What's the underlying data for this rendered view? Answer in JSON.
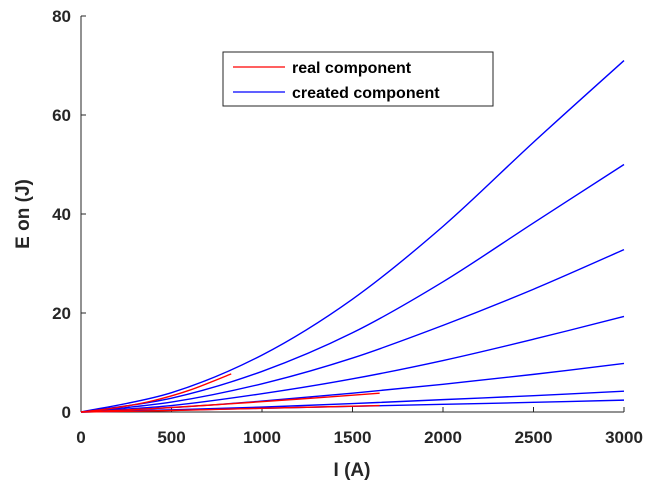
{
  "chart_data": {
    "type": "line",
    "title": "",
    "xlabel": "I (A)",
    "ylabel": "E on (J)",
    "xlim": [
      0,
      3000
    ],
    "ylim": [
      0,
      80
    ],
    "xticks": [
      0,
      500,
      1000,
      1500,
      2000,
      2500,
      3000
    ],
    "yticks": [
      0,
      20,
      40,
      60,
      80
    ],
    "grid": false,
    "legend_position": "top-center",
    "legend": [
      {
        "name": "real component",
        "color": "#ff0000"
      },
      {
        "name": "created component",
        "color": "#0000ff"
      }
    ],
    "series": [
      {
        "name": "created component",
        "color": "#0000ff",
        "x": [
          0,
          500,
          1000,
          1500,
          2000,
          2500,
          3000
        ],
        "y": [
          0,
          3.9,
          11.5,
          22.8,
          37.5,
          54.5,
          71
        ]
      },
      {
        "name": "created component",
        "color": "#0000ff",
        "x": [
          0,
          500,
          1000,
          1500,
          2000,
          2500,
          3000
        ],
        "y": [
          0,
          2.8,
          8.2,
          16,
          26.3,
          38.2,
          50
        ]
      },
      {
        "name": "created component",
        "color": "#0000ff",
        "x": [
          0,
          500,
          1000,
          1500,
          2000,
          2500,
          3000
        ],
        "y": [
          0,
          2.0,
          5.7,
          10.9,
          17.5,
          24.8,
          32.8
        ]
      },
      {
        "name": "created component",
        "color": "#0000ff",
        "x": [
          0,
          500,
          1000,
          1500,
          2000,
          2500,
          3000
        ],
        "y": [
          0,
          1.3,
          3.7,
          6.7,
          10.4,
          14.7,
          19.3
        ]
      },
      {
        "name": "created component",
        "color": "#0000ff",
        "x": [
          0,
          500,
          1000,
          1500,
          2000,
          2500,
          3000
        ],
        "y": [
          0,
          0.9,
          2.2,
          3.8,
          5.6,
          7.6,
          9.8
        ]
      },
      {
        "name": "created component",
        "color": "#0000ff",
        "x": [
          0,
          500,
          1000,
          1500,
          2000,
          2500,
          3000
        ],
        "y": [
          0,
          0.45,
          1.0,
          1.7,
          2.5,
          3.3,
          4.2
        ]
      },
      {
        "name": "created component",
        "color": "#0000ff",
        "x": [
          0,
          500,
          1000,
          1500,
          2000,
          2500,
          3000
        ],
        "y": [
          0,
          0.35,
          0.75,
          1.15,
          1.55,
          1.95,
          2.4
        ]
      },
      {
        "name": "real component",
        "color": "#ff0000",
        "x": [
          0,
          200,
          400,
          600,
          830
        ],
        "y": [
          0,
          0.9,
          2.3,
          4.4,
          7.7
        ]
      },
      {
        "name": "real component",
        "color": "#ff0000",
        "x": [
          0,
          400,
          800,
          1200,
          1650
        ],
        "y": [
          0,
          0.7,
          1.6,
          2.6,
          3.8
        ]
      },
      {
        "name": "real component",
        "color": "#ff0000",
        "x": [
          0,
          500,
          1000,
          1650
        ],
        "y": [
          0,
          0.3,
          0.75,
          1.3
        ]
      }
    ]
  }
}
